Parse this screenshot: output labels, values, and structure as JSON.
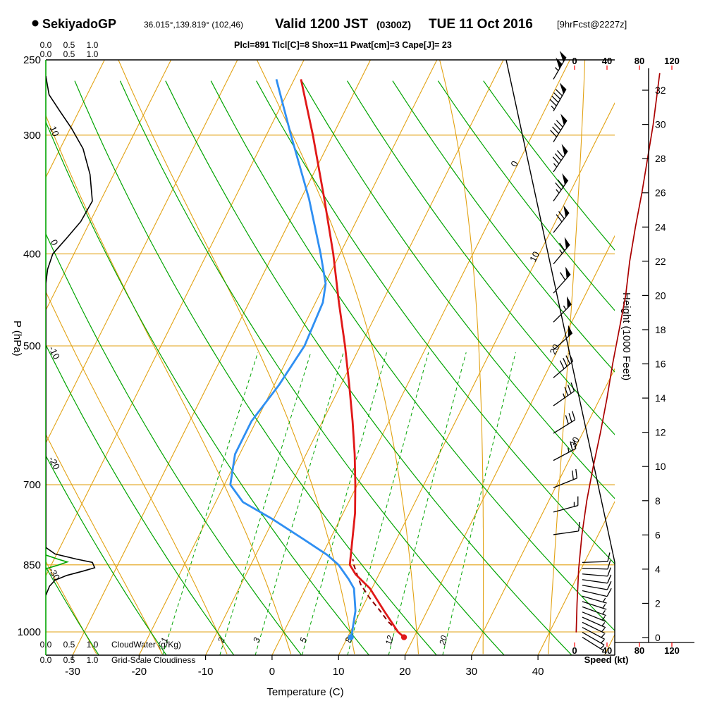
{
  "header": {
    "station": "SekiyadoGP",
    "coords": "36.015°,139.819° (102,46)",
    "valid": "Valid 1200 JST",
    "valid_z": "(0300Z)",
    "valid_date": "TUE 11 Oct 2016",
    "forecast": "[9hrFcst@2227z]",
    "params": "Plcl=891 Tlcl[C]=8 Shox=11 Pwat[cm]=3 Cape[J]= 23"
  },
  "axes": {
    "pressure": {
      "title": "P (hPa)",
      "ticks": [
        250,
        300,
        400,
        500,
        700,
        850,
        1000
      ]
    },
    "temperature": {
      "title": "Temperature (C)",
      "ticks": [
        -30,
        -20,
        -10,
        0,
        10,
        20,
        30,
        40
      ]
    },
    "height": {
      "title": "Height (1000 Feet)",
      "ticks": [
        0,
        2,
        4,
        6,
        8,
        10,
        12,
        14,
        16,
        18,
        20,
        22,
        24,
        26,
        28,
        30,
        32
      ]
    },
    "speed": {
      "title": "Speed (kt)",
      "ticks": [
        0,
        40,
        80,
        120
      ]
    },
    "cloudwater": {
      "title": "CloudWater (g/Kg)",
      "ticks": [
        "0.0",
        "0.5",
        "1.0"
      ]
    },
    "cloudiness": {
      "title": "Grid-Scale Cloudiness",
      "ticks": [
        "0.0",
        "0.5",
        "1.0"
      ]
    }
  },
  "grid": {
    "isotherms_c": {
      "min": -70,
      "max": 50,
      "step": 10,
      "labeled_on_diagonal": [
        0,
        10,
        20,
        30
      ]
    },
    "dry_adiabats_c": {
      "min": -30,
      "max": 110,
      "step": 10,
      "labeled_at_left": [
        10,
        0,
        -10,
        -20,
        -30
      ]
    },
    "moist_adiabats_c": {
      "min": -30,
      "max": 40,
      "step": 10
    },
    "mixing_ratio_gkg": [
      1,
      2,
      3,
      5,
      8,
      12,
      20
    ],
    "pressure_lines_hpa": [
      250,
      300,
      400,
      500,
      700,
      850,
      1000
    ]
  },
  "chart_data": {
    "type": "line",
    "chart_kind": "skew-t log-p thermodynamic sounding",
    "pressure_range_hpa": [
      250,
      1058
    ],
    "temperature_c": {
      "p": [
        262,
        300,
        350,
        400,
        450,
        500,
        550,
        600,
        650,
        700,
        750,
        800,
        850,
        870,
        900,
        950,
        1000,
        1013
      ],
      "t": [
        -39,
        -33,
        -26.5,
        -21,
        -16.5,
        -12.3,
        -8.7,
        -5.5,
        -2.7,
        -0.3,
        1.8,
        3.4,
        4.9,
        6.5,
        9.7,
        13.5,
        17.2,
        18.5
      ]
    },
    "dewpoint_c": {
      "p": [
        262,
        300,
        350,
        400,
        430,
        450,
        500,
        550,
        600,
        650,
        700,
        730,
        760,
        800,
        830,
        850,
        880,
        900,
        950,
        1000,
        1013
      ],
      "t": [
        -42.7,
        -36.3,
        -28.8,
        -22.9,
        -19.9,
        -18.9,
        -18.4,
        -19.3,
        -20.7,
        -20.7,
        -19.1,
        -15.9,
        -10.3,
        -3.8,
        0.8,
        3.2,
        5.8,
        7.3,
        9.2,
        10.3,
        10.5
      ]
    },
    "parcel_c": {
      "p": [
        1013,
        975,
        950,
        920,
        891,
        870,
        850,
        838
      ],
      "t": [
        18.5,
        14.9,
        12.9,
        10.3,
        8.0,
        6.7,
        5.5,
        4.9
      ]
    },
    "wind_speed_kt": {
      "height_kft": [
        0.3,
        2,
        4,
        6,
        8,
        10,
        12,
        14,
        16,
        18,
        20,
        22,
        24,
        26,
        28,
        30,
        33
      ],
      "kt": [
        2,
        3,
        5,
        9,
        15,
        23,
        32,
        40,
        47,
        55,
        63,
        68,
        75,
        83,
        90,
        97,
        105
      ]
    },
    "wind_barbs": [
      {
        "p": 262,
        "kt": 105,
        "dir": 30
      },
      {
        "p": 283,
        "kt": 95,
        "dir": 30
      },
      {
        "p": 305,
        "kt": 90,
        "dir": 32
      },
      {
        "p": 328,
        "kt": 85,
        "dir": 34
      },
      {
        "p": 352,
        "kt": 75,
        "dir": 35
      },
      {
        "p": 380,
        "kt": 70,
        "dir": 38
      },
      {
        "p": 410,
        "kt": 65,
        "dir": 40
      },
      {
        "p": 440,
        "kt": 60,
        "dir": 42
      },
      {
        "p": 472,
        "kt": 55,
        "dir": 45
      },
      {
        "p": 505,
        "kt": 50,
        "dir": 48
      },
      {
        "p": 540,
        "kt": 42,
        "dir": 50
      },
      {
        "p": 578,
        "kt": 35,
        "dir": 55
      },
      {
        "p": 618,
        "kt": 30,
        "dir": 58
      },
      {
        "p": 660,
        "kt": 25,
        "dir": 62
      },
      {
        "p": 705,
        "kt": 18,
        "dir": 68
      },
      {
        "p": 748,
        "kt": 14,
        "dir": 75
      },
      {
        "p": 790,
        "kt": 10,
        "dir": 82
      },
      {
        "p": 845,
        "kt": 10,
        "dir": 88
      },
      {
        "p": 857,
        "kt": 9,
        "dir": 92
      },
      {
        "p": 869,
        "kt": 9,
        "dir": 95
      },
      {
        "p": 881,
        "kt": 8,
        "dir": 98
      },
      {
        "p": 893,
        "kt": 8,
        "dir": 100
      },
      {
        "p": 905,
        "kt": 8,
        "dir": 103
      },
      {
        "p": 917,
        "kt": 7,
        "dir": 106
      },
      {
        "p": 929,
        "kt": 7,
        "dir": 108
      },
      {
        "p": 941,
        "kt": 7,
        "dir": 110
      },
      {
        "p": 953,
        "kt": 6,
        "dir": 112
      },
      {
        "p": 965,
        "kt": 6,
        "dir": 114
      },
      {
        "p": 977,
        "kt": 5,
        "dir": 116
      },
      {
        "p": 989,
        "kt": 5,
        "dir": 118
      },
      {
        "p": 1001,
        "kt": 5,
        "dir": 120
      },
      {
        "p": 1013,
        "kt": 4,
        "dir": 122
      }
    ],
    "cloudiness": {
      "p": [
        260,
        272,
        283,
        295,
        310,
        330,
        352,
        370,
        385,
        400,
        415,
        430,
        800,
        815,
        828,
        838,
        845,
        856,
        863,
        872,
        882,
        895,
        915
      ],
      "v": [
        0,
        0.07,
        0.3,
        0.55,
        0.8,
        0.95,
        1.0,
        0.75,
        0.45,
        0.15,
        0.04,
        0,
        0,
        0,
        0.2,
        0.65,
        1.0,
        1.05,
        0.8,
        0.45,
        0.2,
        0.08,
        0
      ]
    },
    "cloudwater_gkg": {
      "p": [
        830,
        838,
        844,
        851,
        858
      ],
      "v": [
        0,
        0.25,
        0.46,
        0.25,
        0
      ]
    }
  },
  "colors": {
    "grid": "#e2a213",
    "green": "#00a400",
    "temperature": "#e01818",
    "dewpoint": "#2f8ff2",
    "parcel": "#8b0000",
    "wind_speed": "#aa0000",
    "speed_axis": "#ff0000",
    "params_text": "#b000b0"
  }
}
